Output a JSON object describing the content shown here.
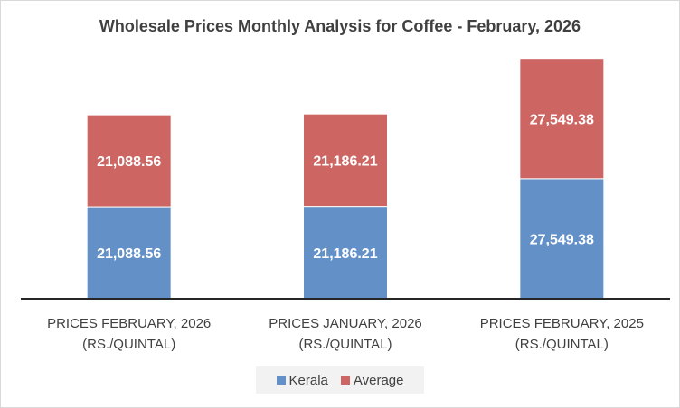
{
  "chart_data": {
    "type": "bar",
    "stacked": true,
    "title": "Wholesale Prices Monthly Analysis for Coffee - February, 2026",
    "categories": [
      [
        "PRICES FEBRUARY, 2026",
        "(RS./QUINTAL)"
      ],
      [
        "PRICES JANUARY, 2026",
        "(RS./QUINTAL)"
      ],
      [
        "PRICES FEBRUARY, 2025",
        "(RS./QUINTAL)"
      ]
    ],
    "series": [
      {
        "name": "Kerala",
        "color": "#6490c8",
        "values": [
          21088.56,
          21186.21,
          27549.38
        ],
        "labels": [
          "21,088.56",
          "21,186.21",
          "27,549.38"
        ]
      },
      {
        "name": "Average",
        "color": "#cd6663",
        "values": [
          21088.56,
          21186.21,
          27549.38
        ],
        "labels": [
          "21,088.56",
          "21,186.21",
          "27,549.38"
        ]
      }
    ],
    "xlabel": "",
    "ylabel": "",
    "ylim": [
      0,
      60000
    ],
    "grid": false,
    "legend": "bottom"
  }
}
